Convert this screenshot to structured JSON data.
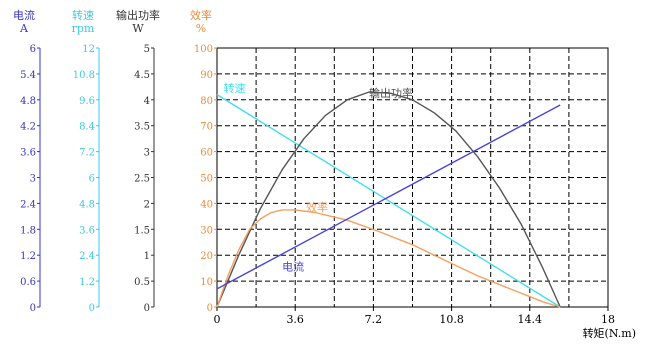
{
  "chart_data": {
    "type": "line",
    "x_axis": {
      "label": "转矩(N.m)",
      "min": 0,
      "max": 18,
      "ticks": [
        "0",
        "3.6",
        "7.2",
        "10.8",
        "14.4",
        "18"
      ]
    },
    "axes": [
      {
        "id": "current",
        "title": "电流",
        "unit": "A",
        "color": "#3535c8",
        "min": 0,
        "max": 6,
        "ticks": [
          "0",
          "0.6",
          "1.2",
          "1.8",
          "2.4",
          "3",
          "3.6",
          "4.2",
          "4.8",
          "5.4",
          "6"
        ]
      },
      {
        "id": "speed",
        "title": "转速",
        "unit": "rpm",
        "color": "#3ec9e6",
        "min": 0,
        "max": 12,
        "ticks": [
          "0",
          "1.2",
          "2.4",
          "3.6",
          "4.8",
          "6",
          "7.2",
          "8.4",
          "9.6",
          "10.8",
          "12"
        ]
      },
      {
        "id": "power",
        "title": "输出功率",
        "unit": "W",
        "color": "#333333",
        "min": 0,
        "max": 5,
        "ticks": [
          "0",
          "0.5",
          "1",
          "1.5",
          "2",
          "2.5",
          "3",
          "3.5",
          "4",
          "4.5",
          "5"
        ]
      },
      {
        "id": "efficiency",
        "title": "效率",
        "unit": "%",
        "color": "#f08a3a",
        "min": 0,
        "max": 100,
        "ticks": [
          "0",
          "10",
          "20",
          "30",
          "40",
          "50",
          "60",
          "70",
          "80",
          "90",
          "100"
        ]
      }
    ],
    "grid": true,
    "series": [
      {
        "name": "转速",
        "color": "#44e0ea",
        "label_x": 0.3,
        "label_y": 83,
        "x": [
          0,
          15.8
        ],
        "y": [
          82,
          0
        ]
      },
      {
        "name": "输出功率",
        "color": "#555555",
        "label_x": 7.0,
        "label_y": 81,
        "x": [
          0,
          1,
          2,
          3,
          4,
          5,
          6,
          7,
          8,
          9,
          10,
          11,
          12,
          13,
          14,
          15,
          15.8
        ],
        "y": [
          0,
          20,
          38,
          53,
          65,
          74,
          80,
          83,
          82.5,
          80,
          75,
          68,
          58,
          46,
          32,
          15,
          0
        ]
      },
      {
        "name": "效率",
        "color": "#f5a060",
        "label_x": 4.1,
        "label_y": 37,
        "x": [
          0,
          0.5,
          1,
          1.5,
          2,
          2.5,
          3,
          3.6,
          4.5,
          6,
          7.5,
          9,
          10.5,
          12,
          13.5,
          15,
          15.8
        ],
        "y": [
          0,
          12,
          22,
          30,
          34,
          36.5,
          37.5,
          37.5,
          36.5,
          33.5,
          29,
          24,
          18,
          12,
          7,
          2,
          0
        ]
      },
      {
        "name": "电流",
        "color": "#4848d6",
        "label_x": 3.0,
        "label_y": 14,
        "x": [
          0,
          15.8
        ],
        "y": [
          7,
          78
        ]
      }
    ]
  }
}
